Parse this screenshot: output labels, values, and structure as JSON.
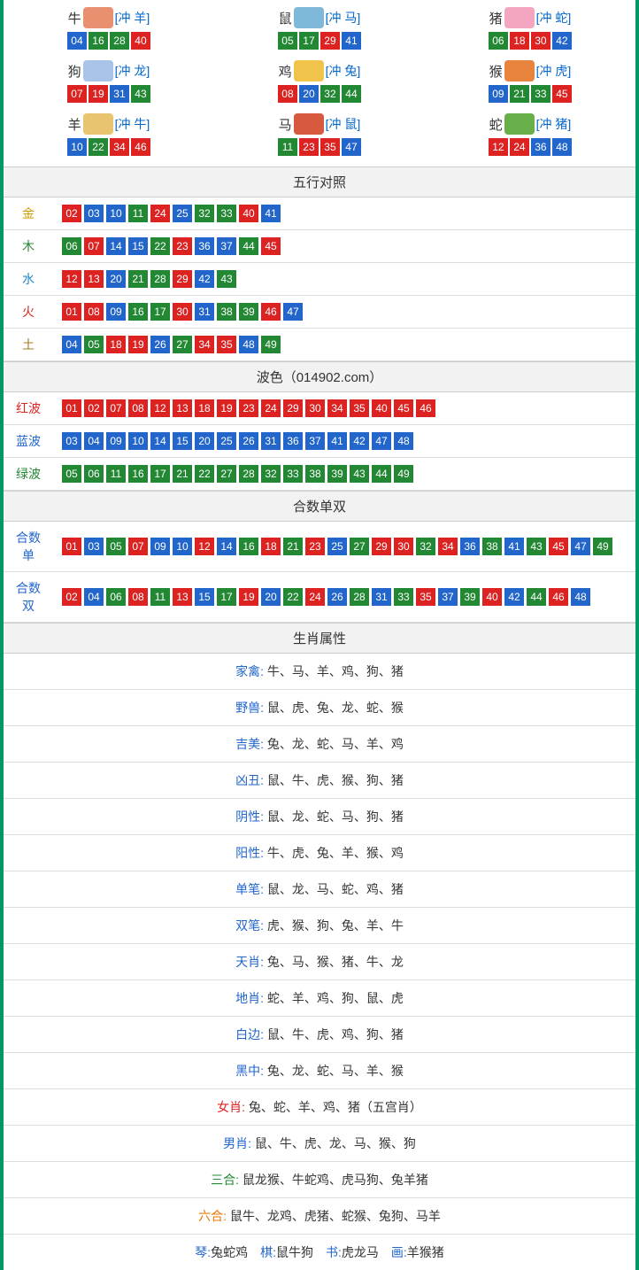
{
  "colors": {
    "border": "#009966",
    "num_red": "#dd2222",
    "num_blue": "#2266cc",
    "num_green": "#228833",
    "header_bg": "#f2f2f2",
    "divider": "#dddddd",
    "link_blue": "#2266cc"
  },
  "zodiac_icon_bg": {
    "牛": "#e89070",
    "鼠": "#7fb8d8",
    "猪": "#f4a6c0",
    "狗": "#a8c4e8",
    "鸡": "#f0c44a",
    "猴": "#e8843e",
    "羊": "#e8c470",
    "马": "#d85a3e",
    "蛇": "#6ab04a"
  },
  "zodiac": [
    {
      "name": "牛",
      "clash": "[冲 羊]",
      "nums": [
        [
          "04",
          "blue"
        ],
        [
          "16",
          "green"
        ],
        [
          "28",
          "green"
        ],
        [
          "40",
          "red"
        ]
      ]
    },
    {
      "name": "鼠",
      "clash": "[冲 马]",
      "nums": [
        [
          "05",
          "green"
        ],
        [
          "17",
          "green"
        ],
        [
          "29",
          "red"
        ],
        [
          "41",
          "blue"
        ]
      ]
    },
    {
      "name": "猪",
      "clash": "[冲 蛇]",
      "nums": [
        [
          "06",
          "green"
        ],
        [
          "18",
          "red"
        ],
        [
          "30",
          "red"
        ],
        [
          "42",
          "blue"
        ]
      ]
    },
    {
      "name": "狗",
      "clash": "[冲 龙]",
      "nums": [
        [
          "07",
          "red"
        ],
        [
          "19",
          "red"
        ],
        [
          "31",
          "blue"
        ],
        [
          "43",
          "green"
        ]
      ]
    },
    {
      "name": "鸡",
      "clash": "[冲 兔]",
      "nums": [
        [
          "08",
          "red"
        ],
        [
          "20",
          "blue"
        ],
        [
          "32",
          "green"
        ],
        [
          "44",
          "green"
        ]
      ]
    },
    {
      "name": "猴",
      "clash": "[冲 虎]",
      "nums": [
        [
          "09",
          "blue"
        ],
        [
          "21",
          "green"
        ],
        [
          "33",
          "green"
        ],
        [
          "45",
          "red"
        ]
      ]
    },
    {
      "name": "羊",
      "clash": "[冲 牛]",
      "nums": [
        [
          "10",
          "blue"
        ],
        [
          "22",
          "green"
        ],
        [
          "34",
          "red"
        ],
        [
          "46",
          "red"
        ]
      ]
    },
    {
      "name": "马",
      "clash": "[冲 鼠]",
      "nums": [
        [
          "11",
          "green"
        ],
        [
          "23",
          "red"
        ],
        [
          "35",
          "red"
        ],
        [
          "47",
          "blue"
        ]
      ]
    },
    {
      "name": "蛇",
      "clash": "[冲 猪]",
      "nums": [
        [
          "12",
          "red"
        ],
        [
          "24",
          "red"
        ],
        [
          "36",
          "blue"
        ],
        [
          "48",
          "blue"
        ]
      ]
    }
  ],
  "sections": {
    "wuxing_title": "五行对照",
    "bose_title": "波色（014902.com）",
    "heshu_title": "合数单双",
    "shuxing_title": "生肖属性"
  },
  "wuxing": [
    {
      "label": "金",
      "cls": "label-gold",
      "nums": [
        [
          "02",
          "red"
        ],
        [
          "03",
          "blue"
        ],
        [
          "10",
          "blue"
        ],
        [
          "11",
          "green"
        ],
        [
          "24",
          "red"
        ],
        [
          "25",
          "blue"
        ],
        [
          "32",
          "green"
        ],
        [
          "33",
          "green"
        ],
        [
          "40",
          "red"
        ],
        [
          "41",
          "blue"
        ]
      ]
    },
    {
      "label": "木",
      "cls": "label-wood",
      "nums": [
        [
          "06",
          "green"
        ],
        [
          "07",
          "red"
        ],
        [
          "14",
          "blue"
        ],
        [
          "15",
          "blue"
        ],
        [
          "22",
          "green"
        ],
        [
          "23",
          "red"
        ],
        [
          "36",
          "blue"
        ],
        [
          "37",
          "blue"
        ],
        [
          "44",
          "green"
        ],
        [
          "45",
          "red"
        ]
      ]
    },
    {
      "label": "水",
      "cls": "label-water",
      "nums": [
        [
          "12",
          "red"
        ],
        [
          "13",
          "red"
        ],
        [
          "20",
          "blue"
        ],
        [
          "21",
          "green"
        ],
        [
          "28",
          "green"
        ],
        [
          "29",
          "red"
        ],
        [
          "42",
          "blue"
        ],
        [
          "43",
          "green"
        ]
      ]
    },
    {
      "label": "火",
      "cls": "label-fire",
      "nums": [
        [
          "01",
          "red"
        ],
        [
          "08",
          "red"
        ],
        [
          "09",
          "blue"
        ],
        [
          "16",
          "green"
        ],
        [
          "17",
          "green"
        ],
        [
          "30",
          "red"
        ],
        [
          "31",
          "blue"
        ],
        [
          "38",
          "green"
        ],
        [
          "39",
          "green"
        ],
        [
          "46",
          "red"
        ],
        [
          "47",
          "blue"
        ]
      ]
    },
    {
      "label": "土",
      "cls": "label-earth",
      "nums": [
        [
          "04",
          "blue"
        ],
        [
          "05",
          "green"
        ],
        [
          "18",
          "red"
        ],
        [
          "19",
          "red"
        ],
        [
          "26",
          "blue"
        ],
        [
          "27",
          "green"
        ],
        [
          "34",
          "red"
        ],
        [
          "35",
          "red"
        ],
        [
          "48",
          "blue"
        ],
        [
          "49",
          "green"
        ]
      ]
    }
  ],
  "bose": [
    {
      "label": "红波",
      "cls": "label-red",
      "nums": [
        [
          "01",
          "red"
        ],
        [
          "02",
          "red"
        ],
        [
          "07",
          "red"
        ],
        [
          "08",
          "red"
        ],
        [
          "12",
          "red"
        ],
        [
          "13",
          "red"
        ],
        [
          "18",
          "red"
        ],
        [
          "19",
          "red"
        ],
        [
          "23",
          "red"
        ],
        [
          "24",
          "red"
        ],
        [
          "29",
          "red"
        ],
        [
          "30",
          "red"
        ],
        [
          "34",
          "red"
        ],
        [
          "35",
          "red"
        ],
        [
          "40",
          "red"
        ],
        [
          "45",
          "red"
        ],
        [
          "46",
          "red"
        ]
      ]
    },
    {
      "label": "蓝波",
      "cls": "label-blue",
      "nums": [
        [
          "03",
          "blue"
        ],
        [
          "04",
          "blue"
        ],
        [
          "09",
          "blue"
        ],
        [
          "10",
          "blue"
        ],
        [
          "14",
          "blue"
        ],
        [
          "15",
          "blue"
        ],
        [
          "20",
          "blue"
        ],
        [
          "25",
          "blue"
        ],
        [
          "26",
          "blue"
        ],
        [
          "31",
          "blue"
        ],
        [
          "36",
          "blue"
        ],
        [
          "37",
          "blue"
        ],
        [
          "41",
          "blue"
        ],
        [
          "42",
          "blue"
        ],
        [
          "47",
          "blue"
        ],
        [
          "48",
          "blue"
        ]
      ]
    },
    {
      "label": "绿波",
      "cls": "label-green",
      "nums": [
        [
          "05",
          "green"
        ],
        [
          "06",
          "green"
        ],
        [
          "11",
          "green"
        ],
        [
          "16",
          "green"
        ],
        [
          "17",
          "green"
        ],
        [
          "21",
          "green"
        ],
        [
          "22",
          "green"
        ],
        [
          "27",
          "green"
        ],
        [
          "28",
          "green"
        ],
        [
          "32",
          "green"
        ],
        [
          "33",
          "green"
        ],
        [
          "38",
          "green"
        ],
        [
          "39",
          "green"
        ],
        [
          "43",
          "green"
        ],
        [
          "44",
          "green"
        ],
        [
          "49",
          "green"
        ]
      ]
    }
  ],
  "heshu": [
    {
      "label": "合数单",
      "cls": "label-blue",
      "nums": [
        [
          "01",
          "red"
        ],
        [
          "03",
          "blue"
        ],
        [
          "05",
          "green"
        ],
        [
          "07",
          "red"
        ],
        [
          "09",
          "blue"
        ],
        [
          "10",
          "blue"
        ],
        [
          "12",
          "red"
        ],
        [
          "14",
          "blue"
        ],
        [
          "16",
          "green"
        ],
        [
          "18",
          "red"
        ],
        [
          "21",
          "green"
        ],
        [
          "23",
          "red"
        ],
        [
          "25",
          "blue"
        ],
        [
          "27",
          "green"
        ],
        [
          "29",
          "red"
        ],
        [
          "30",
          "red"
        ],
        [
          "32",
          "green"
        ],
        [
          "34",
          "red"
        ],
        [
          "36",
          "blue"
        ],
        [
          "38",
          "green"
        ],
        [
          "41",
          "blue"
        ],
        [
          "43",
          "green"
        ],
        [
          "45",
          "red"
        ],
        [
          "47",
          "blue"
        ],
        [
          "49",
          "green"
        ]
      ]
    },
    {
      "label": "合数双",
      "cls": "label-blue",
      "nums": [
        [
          "02",
          "red"
        ],
        [
          "04",
          "blue"
        ],
        [
          "06",
          "green"
        ],
        [
          "08",
          "red"
        ],
        [
          "11",
          "green"
        ],
        [
          "13",
          "red"
        ],
        [
          "15",
          "blue"
        ],
        [
          "17",
          "green"
        ],
        [
          "19",
          "red"
        ],
        [
          "20",
          "blue"
        ],
        [
          "22",
          "green"
        ],
        [
          "24",
          "red"
        ],
        [
          "26",
          "blue"
        ],
        [
          "28",
          "green"
        ],
        [
          "31",
          "blue"
        ],
        [
          "33",
          "green"
        ],
        [
          "35",
          "red"
        ],
        [
          "37",
          "blue"
        ],
        [
          "39",
          "green"
        ],
        [
          "40",
          "red"
        ],
        [
          "42",
          "blue"
        ],
        [
          "44",
          "green"
        ],
        [
          "46",
          "red"
        ],
        [
          "48",
          "blue"
        ]
      ]
    }
  ],
  "attrs": [
    {
      "label": "家禽",
      "cls": "",
      "sep": ":",
      "value": "牛、马、羊、鸡、狗、猪"
    },
    {
      "label": "野兽",
      "cls": "",
      "sep": ":",
      "value": "鼠、虎、兔、龙、蛇、猴"
    },
    {
      "label": "吉美",
      "cls": "",
      "sep": ":",
      "value": "兔、龙、蛇、马、羊、鸡"
    },
    {
      "label": "凶丑",
      "cls": "",
      "sep": ":",
      "value": "鼠、牛、虎、猴、狗、猪"
    },
    {
      "label": "阴性",
      "cls": "",
      "sep": ":",
      "value": "鼠、龙、蛇、马、狗、猪"
    },
    {
      "label": "阳性",
      "cls": "",
      "sep": ":",
      "value": "牛、虎、兔、羊、猴、鸡"
    },
    {
      "label": "单笔",
      "cls": "",
      "sep": ":",
      "value": "鼠、龙、马、蛇、鸡、猪"
    },
    {
      "label": "双笔",
      "cls": "",
      "sep": ":",
      "value": "虎、猴、狗、兔、羊、牛"
    },
    {
      "label": "天肖",
      "cls": "",
      "sep": ":",
      "value": "兔、马、猴、猪、牛、龙"
    },
    {
      "label": "地肖",
      "cls": "",
      "sep": ":",
      "value": "蛇、羊、鸡、狗、鼠、虎"
    },
    {
      "label": "白边",
      "cls": "",
      "sep": ":",
      "value": "鼠、牛、虎、鸡、狗、猪"
    },
    {
      "label": "黑中",
      "cls": "",
      "sep": ":",
      "value": "兔、龙、蛇、马、羊、猴"
    },
    {
      "label": "女肖",
      "cls": "red",
      "sep": ":",
      "value": "兔、蛇、羊、鸡、猪（五宫肖）"
    },
    {
      "label": "男肖",
      "cls": "",
      "sep": ":",
      "value": "鼠、牛、虎、龙、马、猴、狗"
    },
    {
      "label": "三合",
      "cls": "green",
      "sep": ":",
      "value": "鼠龙猴、牛蛇鸡、虎马狗、兔羊猪"
    },
    {
      "label": "六合",
      "cls": "orange",
      "sep": ":",
      "value": "鼠牛、龙鸡、虎猪、蛇猴、兔狗、马羊"
    }
  ],
  "four_arts": [
    {
      "label": "琴",
      "value": "兔蛇鸡"
    },
    {
      "label": "棋",
      "value": "鼠牛狗"
    },
    {
      "label": "书",
      "value": "虎龙马"
    },
    {
      "label": "画",
      "value": "羊猴猪"
    }
  ]
}
